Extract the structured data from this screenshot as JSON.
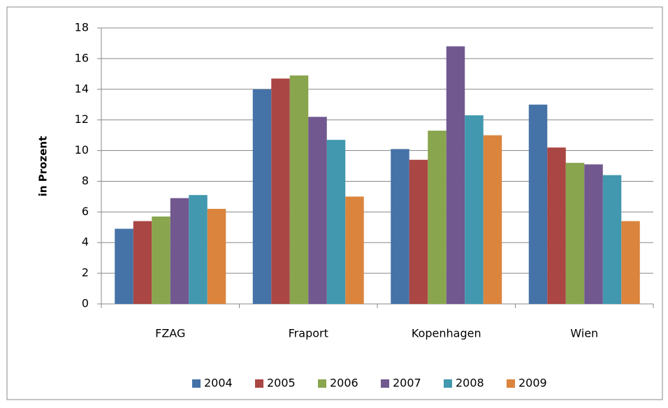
{
  "chart_data": {
    "type": "bar",
    "y_label": "in Prozent",
    "categories": [
      "FZAG",
      "Fraport",
      "Kopenhagen",
      "Wien"
    ],
    "series": [
      {
        "name": "2004",
        "color": "#4572a7",
        "values": [
          4.9,
          14.0,
          10.1,
          13.0
        ]
      },
      {
        "name": "2005",
        "color": "#aa4643",
        "values": [
          5.4,
          14.7,
          9.4,
          10.2
        ]
      },
      {
        "name": "2006",
        "color": "#89a54e",
        "values": [
          5.7,
          14.9,
          11.3,
          9.2
        ]
      },
      {
        "name": "2007",
        "color": "#71588f",
        "values": [
          6.9,
          12.2,
          16.8,
          9.1
        ]
      },
      {
        "name": "2008",
        "color": "#4198af",
        "values": [
          7.1,
          10.7,
          12.3,
          8.4
        ]
      },
      {
        "name": "2009",
        "color": "#db843d",
        "values": [
          6.2,
          7.0,
          11.0,
          5.4
        ]
      }
    ],
    "ylim": [
      0,
      18
    ],
    "yticks": [
      0,
      2,
      4,
      6,
      8,
      10,
      12,
      14,
      16,
      18
    ],
    "grid": true,
    "legend": "bottom"
  }
}
